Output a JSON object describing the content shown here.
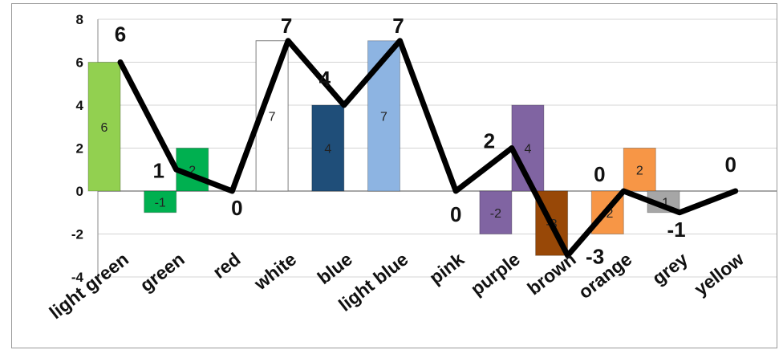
{
  "chart_data": {
    "type": "bar",
    "categories": [
      "light green",
      "green",
      "red",
      "white",
      "blue",
      "light blue",
      "pink",
      "purple",
      "brown",
      "orange",
      "grey",
      "yellow"
    ],
    "ylim": [
      -4,
      8
    ],
    "yticks": [
      "8",
      "6",
      "4",
      "2",
      "0",
      "-2",
      "-4"
    ],
    "grid": true,
    "bars": [
      {
        "category": "light green",
        "value": 6,
        "label": "6",
        "color": "#92d050",
        "slot": 0
      },
      {
        "category": "green",
        "value": -1,
        "label": "-1",
        "color": "#00b050",
        "slot": 0
      },
      {
        "category": "green",
        "value": 2,
        "label": "2",
        "color": "#00b050",
        "slot": 1
      },
      {
        "category": "white",
        "value": 7,
        "label": "7",
        "color": "#ffffff",
        "slot": 0
      },
      {
        "category": "blue",
        "value": 4,
        "label": "4",
        "color": "#1f4e79",
        "slot": 0
      },
      {
        "category": "light blue",
        "value": 7,
        "label": "7",
        "color": "#8db4e2",
        "slot": 0
      },
      {
        "category": "purple",
        "value": -2,
        "label": "-2",
        "color": "#8064a2",
        "slot": 0
      },
      {
        "category": "purple",
        "value": 4,
        "label": "4",
        "color": "#8064a2",
        "slot": 1
      },
      {
        "category": "brown",
        "value": -3,
        "label": "-3",
        "color": "#984807",
        "slot": 0
      },
      {
        "category": "orange",
        "value": -2,
        "label": "-2",
        "color": "#f79646",
        "slot": 0
      },
      {
        "category": "orange",
        "value": 2,
        "label": "2",
        "color": "#f79646",
        "slot": 1
      },
      {
        "category": "grey",
        "value": -1,
        "label": "-1",
        "color": "#a6a6a6",
        "slot": 0
      }
    ],
    "line": {
      "values": [
        6,
        1,
        0,
        7,
        4,
        7,
        0,
        2,
        -3,
        0,
        -1,
        0
      ],
      "labels": [
        "6",
        "1",
        "0",
        "7",
        "4",
        "7",
        "0",
        "2",
        "-3",
        "0",
        "-1",
        "0"
      ],
      "color": "#000000"
    }
  }
}
